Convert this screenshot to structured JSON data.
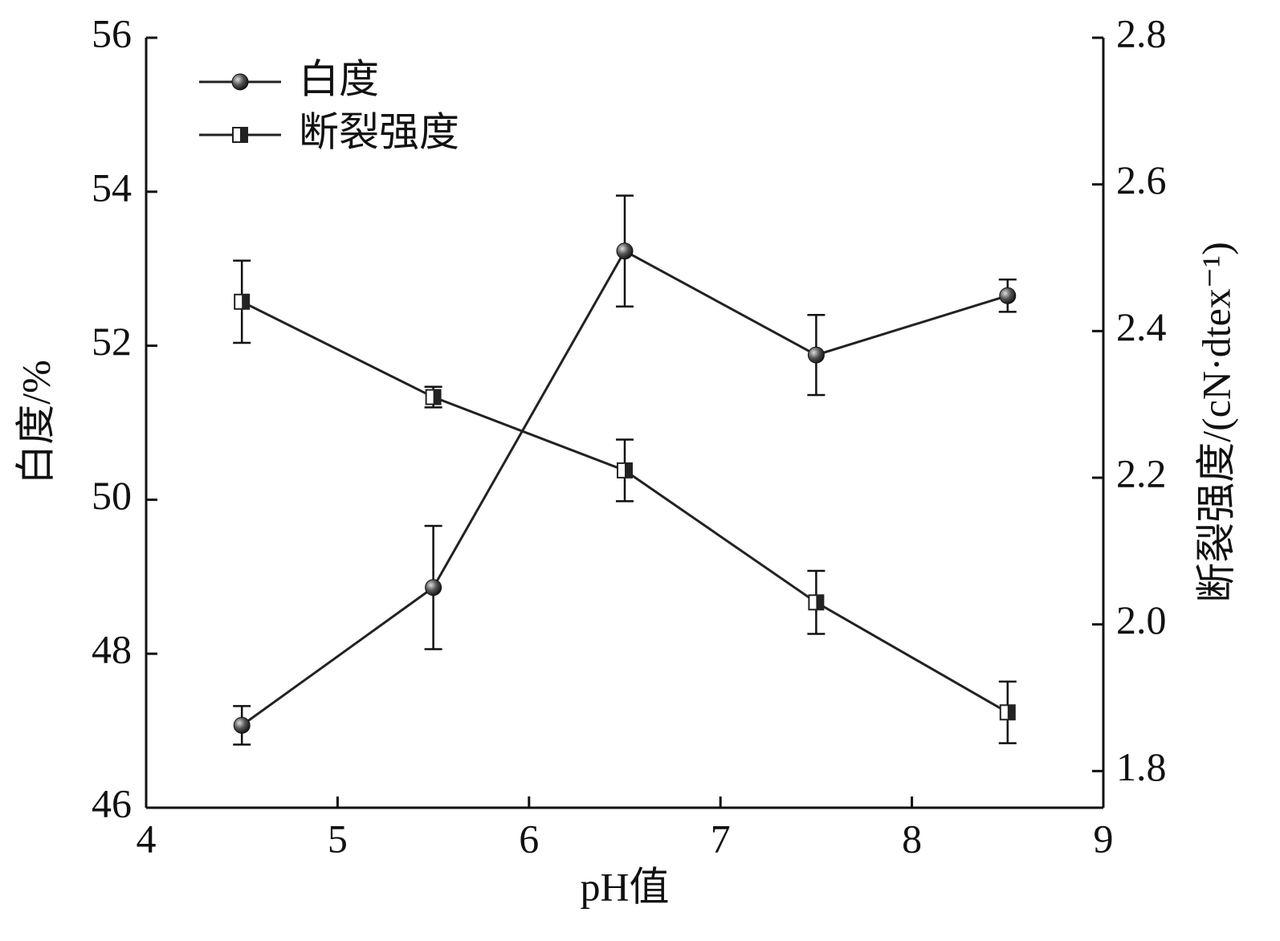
{
  "chart_data": {
    "type": "line",
    "x_label": "pH值",
    "y_label": "白度/%",
    "y2_label": "断裂强度/(cN·dtex⁻¹)",
    "xlim": [
      4,
      9
    ],
    "xticks": [
      4,
      5,
      6,
      7,
      8,
      9
    ],
    "ylim": [
      46,
      56
    ],
    "yticks": [
      46,
      48,
      50,
      52,
      54,
      56
    ],
    "y2lim": [
      1.75,
      2.8
    ],
    "y2ticks": [
      1.8,
      {
        "value": 2,
        "label": "2.0"
      },
      2.2,
      2.4,
      2.6,
      2.8
    ],
    "legend": "upper left",
    "series": [
      {
        "name": "白度",
        "color": "#222222",
        "marker": "circle",
        "x": [
          4.5,
          5.5,
          6.5,
          7.5,
          8.5
        ],
        "values": [
          47.07,
          48.86,
          53.23,
          51.88,
          52.65
        ],
        "errors": [
          0.25,
          0.8,
          0.72,
          0.52,
          0.21
        ]
      },
      {
        "name": "断裂强度",
        "color": "#222222",
        "marker": "square",
        "axis": "y2",
        "x": [
          4.5,
          5.5,
          6.5,
          7.5,
          8.5
        ],
        "values": [
          2.44,
          2.31,
          2.21,
          2.03,
          1.88
        ],
        "errors": [
          0.056,
          0.014,
          0.042,
          0.043,
          0.042
        ]
      }
    ]
  }
}
